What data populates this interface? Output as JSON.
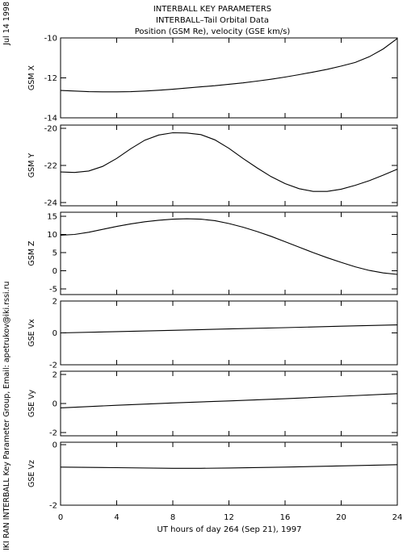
{
  "header": {
    "line1": "INTERBALL KEY PARAMETERS",
    "line2": "INTERBALL–Tail Orbital Data",
    "line3": "Position (GSM Re), velocity (GSE km/s)"
  },
  "side_date": "Jul 14 1998",
  "side_credit": "IKI RAN INTERBALL Key Parameter Group, Email: apetrukov@iki.rssi.ru",
  "colors": {
    "line": "#000000",
    "background": "#ffffff"
  },
  "chart_data": {
    "type": "line",
    "xlabel": "UT hours of day 264 (Sep 21), 1997",
    "xlim": [
      0,
      24
    ],
    "xticks": [
      0,
      4,
      8,
      12,
      16,
      20,
      24
    ],
    "panels": [
      {
        "ylabel": "GSM X",
        "ylim": [
          -14,
          -10
        ],
        "yticks": [
          -14,
          -12,
          -10
        ],
        "x": [
          0,
          1,
          2,
          3,
          4,
          5,
          6,
          7,
          8,
          9,
          10,
          11,
          12,
          13,
          14,
          15,
          16,
          17,
          18,
          19,
          20,
          21,
          22,
          23,
          24
        ],
        "y": [
          -12.63,
          -12.66,
          -12.69,
          -12.7,
          -12.7,
          -12.69,
          -12.66,
          -12.62,
          -12.57,
          -12.51,
          -12.45,
          -12.39,
          -12.32,
          -12.25,
          -12.16,
          -12.07,
          -11.96,
          -11.84,
          -11.71,
          -11.57,
          -11.41,
          -11.23,
          -10.94,
          -10.55,
          -10.03
        ]
      },
      {
        "ylabel": "GSM Y",
        "ylim": [
          -24,
          -20
        ],
        "yticks": [
          -24,
          -22,
          -20
        ],
        "x": [
          0,
          1,
          2,
          3,
          4,
          5,
          6,
          7,
          8,
          9,
          10,
          11,
          12,
          13,
          14,
          15,
          16,
          17,
          18,
          19,
          20,
          21,
          22,
          23,
          24
        ],
        "y": [
          -22.35,
          -22.38,
          -22.3,
          -22.05,
          -21.62,
          -21.1,
          -20.64,
          -20.36,
          -20.24,
          -20.25,
          -20.34,
          -20.62,
          -21.08,
          -21.62,
          -22.13,
          -22.6,
          -22.98,
          -23.25,
          -23.4,
          -23.4,
          -23.28,
          -23.07,
          -22.82,
          -22.52,
          -22.2
        ]
      },
      {
        "ylabel": "GSM Z",
        "ylim": [
          -5,
          15
        ],
        "yticks": [
          -5,
          0,
          5,
          10,
          15
        ],
        "x": [
          0,
          1,
          2,
          3,
          4,
          5,
          6,
          7,
          8,
          9,
          10,
          11,
          12,
          13,
          14,
          15,
          16,
          17,
          18,
          19,
          20,
          21,
          22,
          23,
          24
        ],
        "y": [
          9.8,
          10.0,
          10.6,
          11.4,
          12.2,
          12.9,
          13.5,
          13.9,
          14.2,
          14.3,
          14.2,
          13.8,
          13.0,
          12.0,
          10.8,
          9.5,
          8.0,
          6.5,
          5.0,
          3.6,
          2.3,
          1.1,
          0.1,
          -0.6,
          -1.0
        ]
      },
      {
        "ylabel": "GSE Vx",
        "ylim": [
          -2,
          2
        ],
        "yticks": [
          -2,
          0,
          2
        ],
        "x": [
          0,
          4,
          8,
          12,
          16,
          20,
          24
        ],
        "y": [
          0.0,
          0.08,
          0.16,
          0.25,
          0.33,
          0.42,
          0.5
        ]
      },
      {
        "ylabel": "GSE Vy",
        "ylim": [
          -2,
          2
        ],
        "yticks": [
          -2,
          0,
          2
        ],
        "x": [
          0,
          4,
          8,
          12,
          16,
          20,
          24
        ],
        "y": [
          -0.3,
          -0.12,
          0.04,
          0.18,
          0.33,
          0.5,
          0.68
        ]
      },
      {
        "ylabel": "GSE Vz",
        "ylim": [
          -2,
          0
        ],
        "yticks": [
          -2,
          0
        ],
        "x": [
          0,
          4,
          8,
          10,
          12,
          16,
          20,
          24
        ],
        "y": [
          -0.74,
          -0.76,
          -0.78,
          -0.78,
          -0.77,
          -0.74,
          -0.7,
          -0.66
        ]
      }
    ]
  }
}
